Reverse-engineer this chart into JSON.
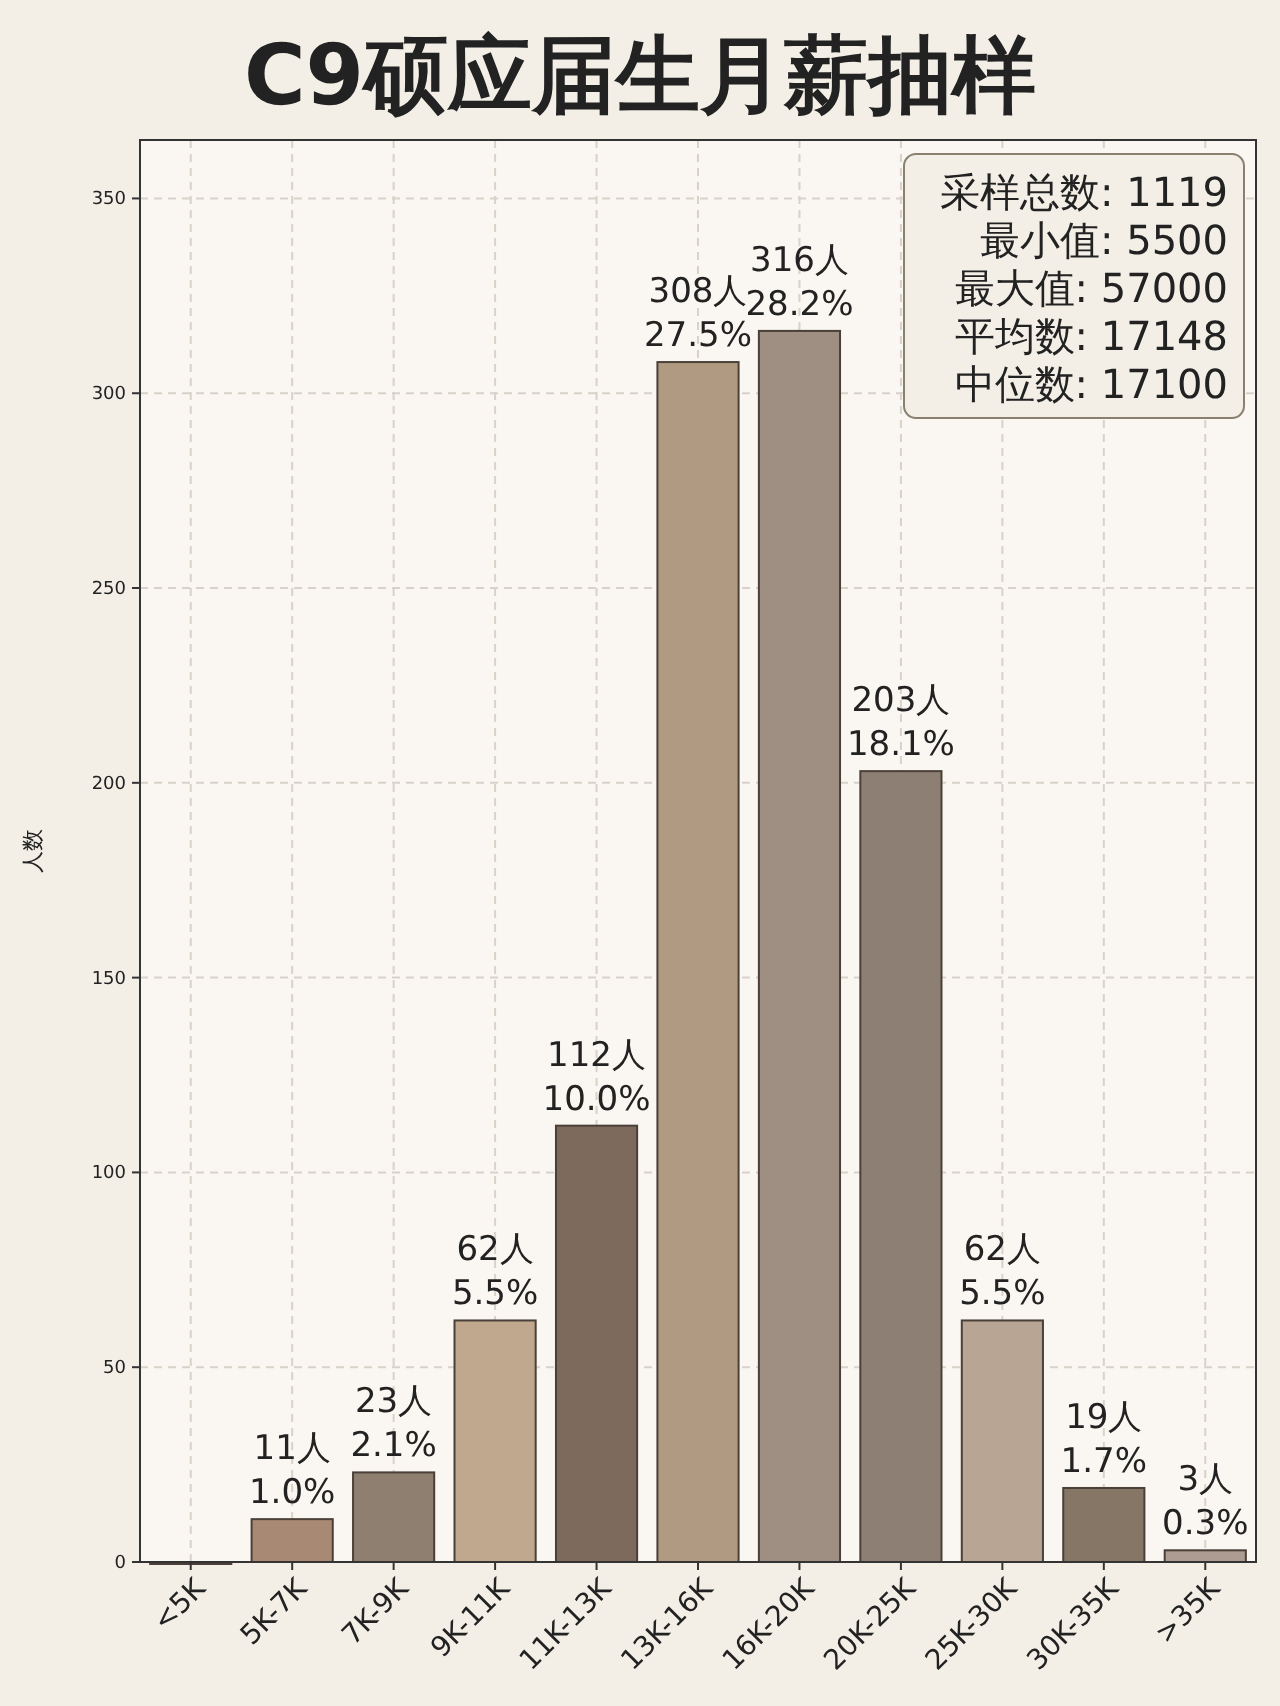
{
  "chart_data": {
    "type": "bar",
    "title": "C9硕应届生月薪抽样",
    "ylabel": "人数",
    "categories": [
      "<5K",
      "5K-7K",
      "7K-9K",
      "9K-11K",
      "11K-13K",
      "13K-16K",
      "16K-20K",
      "20K-25K",
      "25K-30K",
      "30K-35K",
      ">35K"
    ],
    "values": [
      0,
      11,
      23,
      62,
      112,
      308,
      316,
      203,
      62,
      19,
      3
    ],
    "colors": [
      "#7a6a5e",
      "#a88a74",
      "#8f7f70",
      "#bfa88e",
      "#7d6a5c",
      "#b09a82",
      "#9e8f82",
      "#8e7f74",
      "#b8a593",
      "#857666",
      "#ad9c91"
    ],
    "value_labels": [
      null,
      "11人\n1.0%",
      "23人\n2.1%",
      "62人\n5.5%",
      "112人\n10.0%",
      "308人\n27.5%",
      "316人\n28.2%",
      "203人\n18.1%",
      "62人\n5.5%",
      "19人\n1.7%",
      "3人\n0.3%"
    ],
    "ylim": [
      0,
      365
    ],
    "yticks": [
      0,
      50,
      100,
      150,
      200,
      250,
      300,
      350
    ],
    "grid": true,
    "annotations": [
      "采样总数: 1119",
      "最小值: 5500",
      "最大值: 57000",
      "平均数: 17148",
      "中位数: 17100"
    ]
  }
}
